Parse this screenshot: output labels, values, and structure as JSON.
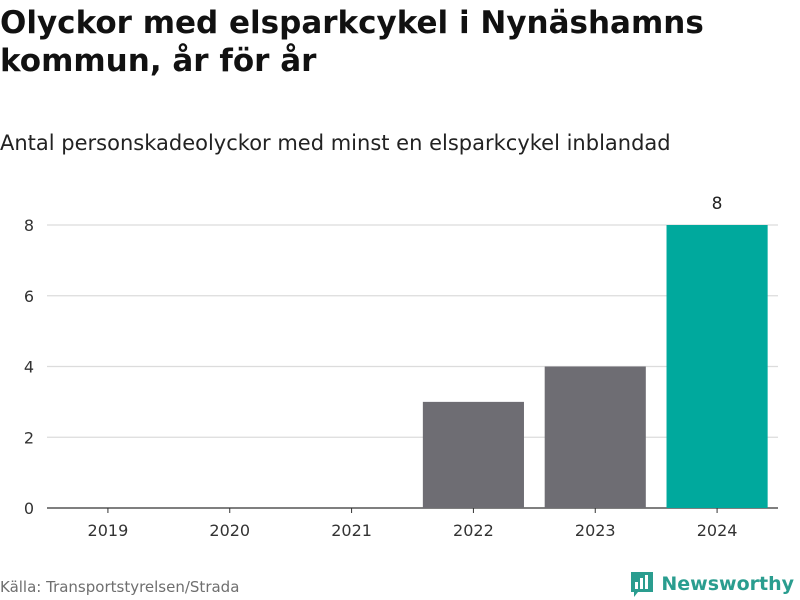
{
  "chart_data": {
    "type": "bar",
    "title": "Olyckor med elsparkcykel i Nynäshamns kommun, år för år",
    "subtitle": "Antal personskadeolyckor med minst en elsparkcykel inblandad",
    "categories": [
      "2019",
      "2020",
      "2021",
      "2022",
      "2023",
      "2024"
    ],
    "values": [
      0,
      0,
      0,
      3,
      4,
      8
    ],
    "ylim": [
      0,
      8
    ],
    "yticks": [
      0,
      2,
      4,
      6,
      8
    ],
    "data_labels": [
      {
        "category": "2024",
        "value": "8"
      }
    ],
    "grid": true,
    "colors": {
      "default_bar": "#6e6d73",
      "highlight_bar": "#00a99d",
      "gridline": "#dcdcdc",
      "axis_line": "#333333"
    },
    "highlight_category": "2024"
  },
  "footer": {
    "source": "Källa: Transportstyrelsen/Strada",
    "brand": "Newsworthy",
    "brand_icon": "bar-chart-logo-icon",
    "brand_color": "#2a9d8f"
  }
}
